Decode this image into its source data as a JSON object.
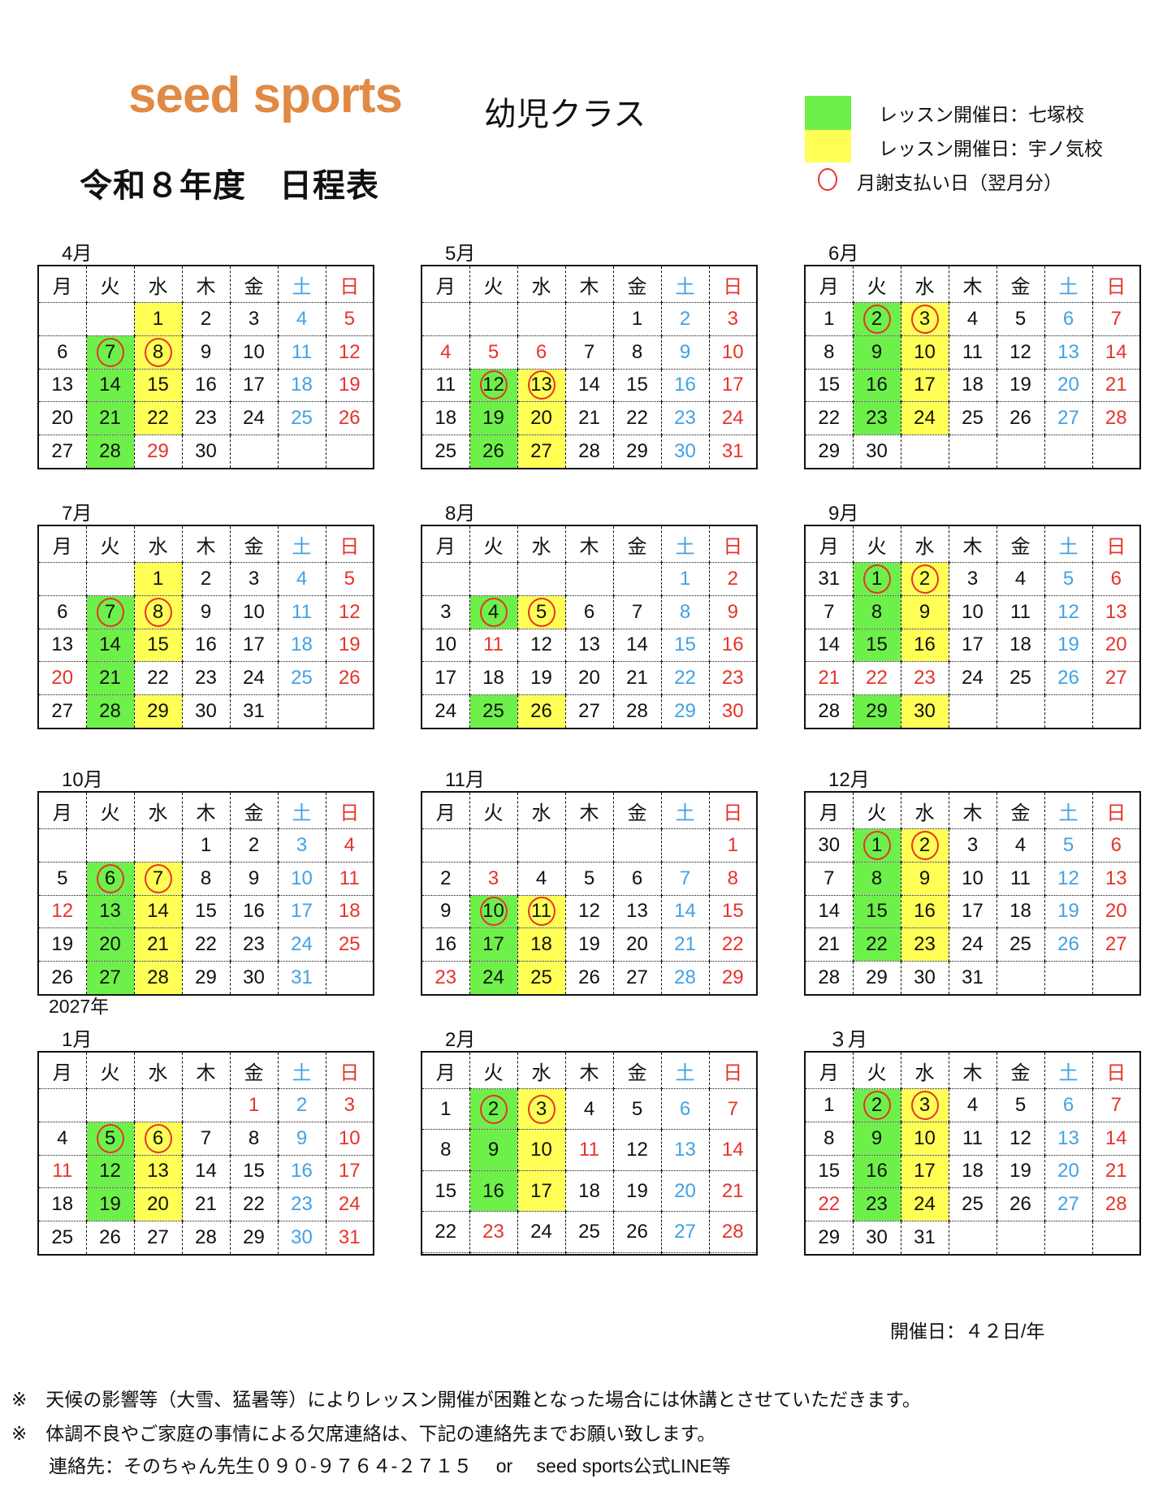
{
  "header": {
    "brand": "seed sports",
    "class_name": "幼児クラス",
    "title": "令和８年度　日程表"
  },
  "legend": {
    "green_label": "レッスン開催日：七塚校",
    "yellow_label": "レッスン開催日：宇ノ気校",
    "circle_label": "月謝支払い日（翌月分）",
    "green_color": "#6ef04a",
    "yellow_color": "#ffff55",
    "circle_color": "#e8322a"
  },
  "weekdays": [
    "月",
    "火",
    "水",
    "木",
    "金",
    "土",
    "日"
  ],
  "year_label": "2027年",
  "months": [
    {
      "label": "4月",
      "weeks": [
        [
          "",
          "",
          "1",
          "2",
          "3",
          "4",
          "5"
        ],
        [
          "6",
          "7",
          "8",
          "9",
          "10",
          "11",
          "12"
        ],
        [
          "13",
          "14",
          "15",
          "16",
          "17",
          "18",
          "19"
        ],
        [
          "20",
          "21",
          "22",
          "23",
          "24",
          "25",
          "26"
        ],
        [
          "27",
          "28",
          "29",
          "30",
          "",
          "",
          ""
        ]
      ],
      "holidays": [
        "29"
      ],
      "green": [
        "7",
        "14",
        "21",
        "28"
      ],
      "yellow": [
        "1",
        "8",
        "15",
        "22"
      ],
      "circled": [
        "7",
        "8"
      ]
    },
    {
      "label": "5月",
      "weeks": [
        [
          "",
          "",
          "",
          "",
          "1",
          "2",
          "3"
        ],
        [
          "4",
          "5",
          "6",
          "7",
          "8",
          "9",
          "10"
        ],
        [
          "11",
          "12",
          "13",
          "14",
          "15",
          "16",
          "17"
        ],
        [
          "18",
          "19",
          "20",
          "21",
          "22",
          "23",
          "24"
        ],
        [
          "25",
          "26",
          "27",
          "28",
          "29",
          "30",
          "31"
        ]
      ],
      "holidays": [
        "4",
        "5",
        "6"
      ],
      "green": [
        "12",
        "19",
        "26"
      ],
      "yellow": [
        "13",
        "20",
        "27"
      ],
      "circled": [
        "12",
        "13"
      ]
    },
    {
      "label": "6月",
      "weeks": [
        [
          "1",
          "2",
          "3",
          "4",
          "5",
          "6",
          "7"
        ],
        [
          "8",
          "9",
          "10",
          "11",
          "12",
          "13",
          "14"
        ],
        [
          "15",
          "16",
          "17",
          "18",
          "19",
          "20",
          "21"
        ],
        [
          "22",
          "23",
          "24",
          "25",
          "26",
          "27",
          "28"
        ],
        [
          "29",
          "30",
          "",
          "",
          "",
          "",
          ""
        ]
      ],
      "holidays": [],
      "green": [
        "2",
        "9",
        "16",
        "23"
      ],
      "yellow": [
        "3",
        "10",
        "17",
        "24"
      ],
      "circled": [
        "2",
        "3"
      ]
    },
    {
      "label": "7月",
      "weeks": [
        [
          "",
          "",
          "1",
          "2",
          "3",
          "4",
          "5"
        ],
        [
          "6",
          "7",
          "8",
          "9",
          "10",
          "11",
          "12"
        ],
        [
          "13",
          "14",
          "15",
          "16",
          "17",
          "18",
          "19"
        ],
        [
          "20",
          "21",
          "22",
          "23",
          "24",
          "25",
          "26"
        ],
        [
          "27",
          "28",
          "29",
          "30",
          "31",
          "",
          ""
        ]
      ],
      "holidays": [
        "20"
      ],
      "green": [
        "7",
        "14",
        "21",
        "28"
      ],
      "yellow": [
        "1",
        "8",
        "15",
        "29"
      ],
      "circled": [
        "7",
        "8"
      ]
    },
    {
      "label": "8月",
      "weeks": [
        [
          "",
          "",
          "",
          "",
          "",
          "1",
          "2"
        ],
        [
          "3",
          "4",
          "5",
          "6",
          "7",
          "8",
          "9"
        ],
        [
          "10",
          "11",
          "12",
          "13",
          "14",
          "15",
          "16"
        ],
        [
          "17",
          "18",
          "19",
          "20",
          "21",
          "22",
          "23"
        ],
        [
          "24",
          "25",
          "26",
          "27",
          "28",
          "29",
          "30"
        ]
      ],
      "holidays": [
        "11"
      ],
      "green": [
        "4",
        "25"
      ],
      "yellow": [
        "5",
        "26"
      ],
      "circled": [
        "4",
        "5"
      ]
    },
    {
      "label": "9月",
      "weeks": [
        [
          "31",
          "1",
          "2",
          "3",
          "4",
          "5",
          "6"
        ],
        [
          "7",
          "8",
          "9",
          "10",
          "11",
          "12",
          "13"
        ],
        [
          "14",
          "15",
          "16",
          "17",
          "18",
          "19",
          "20"
        ],
        [
          "21",
          "22",
          "23",
          "24",
          "25",
          "26",
          "27"
        ],
        [
          "28",
          "29",
          "30",
          "",
          "",
          "",
          ""
        ]
      ],
      "holidays": [
        "21",
        "22",
        "23"
      ],
      "green": [
        "1",
        "8",
        "15",
        "29"
      ],
      "yellow": [
        "2",
        "9",
        "16",
        "30"
      ],
      "circled": [
        "1",
        "2"
      ]
    },
    {
      "label": "10月",
      "weeks": [
        [
          "",
          "",
          "",
          "1",
          "2",
          "3",
          "4"
        ],
        [
          "5",
          "6",
          "7",
          "8",
          "9",
          "10",
          "11"
        ],
        [
          "12",
          "13",
          "14",
          "15",
          "16",
          "17",
          "18"
        ],
        [
          "19",
          "20",
          "21",
          "22",
          "23",
          "24",
          "25"
        ],
        [
          "26",
          "27",
          "28",
          "29",
          "30",
          "31",
          ""
        ]
      ],
      "holidays": [
        "12"
      ],
      "green": [
        "6",
        "13",
        "20",
        "27"
      ],
      "yellow": [
        "7",
        "14",
        "21",
        "28"
      ],
      "circled": [
        "6",
        "7"
      ]
    },
    {
      "label": "11月",
      "weeks": [
        [
          "",
          "",
          "",
          "",
          "",
          "",
          "1"
        ],
        [
          "2",
          "3",
          "4",
          "5",
          "6",
          "7",
          "8"
        ],
        [
          "9",
          "10",
          "11",
          "12",
          "13",
          "14",
          "15"
        ],
        [
          "16",
          "17",
          "18",
          "19",
          "20",
          "21",
          "22"
        ],
        [
          "23",
          "24",
          "25",
          "26",
          "27",
          "28",
          "29"
        ]
      ],
      "holidays": [
        "3",
        "23"
      ],
      "green": [
        "10",
        "17",
        "24"
      ],
      "yellow": [
        "11",
        "18",
        "25"
      ],
      "circled": [
        "10",
        "11"
      ]
    },
    {
      "label": "12月",
      "weeks": [
        [
          "30",
          "1",
          "2",
          "3",
          "4",
          "5",
          "6"
        ],
        [
          "7",
          "8",
          "9",
          "10",
          "11",
          "12",
          "13"
        ],
        [
          "14",
          "15",
          "16",
          "17",
          "18",
          "19",
          "20"
        ],
        [
          "21",
          "22",
          "23",
          "24",
          "25",
          "26",
          "27"
        ],
        [
          "28",
          "29",
          "30",
          "31",
          "",
          "",
          ""
        ]
      ],
      "holidays": [],
      "green": [
        "1",
        "8",
        "15",
        "22"
      ],
      "yellow": [
        "2",
        "9",
        "16",
        "23"
      ],
      "circled": [
        "1",
        "2"
      ]
    },
    {
      "label": "1月",
      "weeks": [
        [
          "",
          "",
          "",
          "",
          "1",
          "2",
          "3"
        ],
        [
          "4",
          "5",
          "6",
          "7",
          "8",
          "9",
          "10"
        ],
        [
          "11",
          "12",
          "13",
          "14",
          "15",
          "16",
          "17"
        ],
        [
          "18",
          "19",
          "20",
          "21",
          "22",
          "23",
          "24"
        ],
        [
          "25",
          "26",
          "27",
          "28",
          "29",
          "30",
          "31"
        ]
      ],
      "holidays": [
        "1",
        "11"
      ],
      "green": [
        "5",
        "12",
        "19"
      ],
      "yellow": [
        "6",
        "13",
        "20"
      ],
      "circled": [
        "5",
        "6"
      ]
    },
    {
      "label": "2月",
      "weeks": [
        [
          "1",
          "2",
          "3",
          "4",
          "5",
          "6",
          "7"
        ],
        [
          "8",
          "9",
          "10",
          "11",
          "12",
          "13",
          "14"
        ],
        [
          "15",
          "16",
          "17",
          "18",
          "19",
          "20",
          "21"
        ],
        [
          "22",
          "23",
          "24",
          "25",
          "26",
          "27",
          "28"
        ],
        [
          "",
          "",
          "",
          "",
          "",
          "",
          ""
        ]
      ],
      "holidays": [
        "11",
        "23"
      ],
      "green": [
        "2",
        "9",
        "16"
      ],
      "yellow": [
        "3",
        "10",
        "17"
      ],
      "circled": [
        "2",
        "3"
      ]
    },
    {
      "label": "３月",
      "weeks": [
        [
          "1",
          "2",
          "3",
          "4",
          "5",
          "6",
          "7"
        ],
        [
          "8",
          "9",
          "10",
          "11",
          "12",
          "13",
          "14"
        ],
        [
          "15",
          "16",
          "17",
          "18",
          "19",
          "20",
          "21"
        ],
        [
          "22",
          "23",
          "24",
          "25",
          "26",
          "27",
          "28"
        ],
        [
          "29",
          "30",
          "31",
          "",
          "",
          "",
          ""
        ]
      ],
      "holidays": [
        "22"
      ],
      "green": [
        "2",
        "9",
        "16",
        "23"
      ],
      "yellow": [
        "3",
        "10",
        "17",
        "24"
      ],
      "circled": [
        "2",
        "3"
      ]
    }
  ],
  "footer": {
    "total": "開催日：４２日/年",
    "note1": "※　天候の影響等（大雪、猛暑等）によりレッスン開催が困難となった場合には休講とさせていただきます。",
    "note2": "※　体調不良やご家庭の事情による欠席連絡は、下記の連絡先までお願い致します。",
    "contact": "　　連絡先：そのちゃん先生０９０-９７６４-２７１５　 or 　seed sports公式LINE等"
  }
}
